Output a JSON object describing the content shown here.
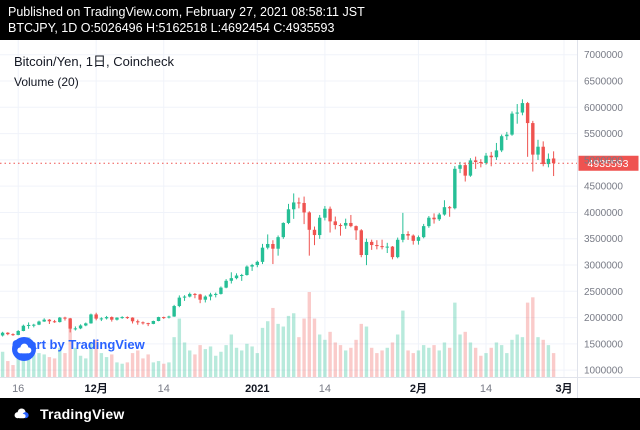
{
  "header": {
    "line1": "Published on TradingView.com, February 27, 2021 08:58:11 JST",
    "line2": "BTCJPY, 1D O:5026496 H:5162518 L:4692454 C:4935593"
  },
  "legend": {
    "title": "Bitcoin/Yen, 1日, Coincheck",
    "indicator": "Volume (20)"
  },
  "watermark": {
    "label": "Chart by TradingView",
    "logo": "tradingview-cloud-icon"
  },
  "footer": {
    "brand": "TradingView",
    "logo": "tradingview-cloud-icon"
  },
  "price_axis": {
    "labels": [
      "7000000",
      "6500000",
      "6000000",
      "5500000",
      "5000000",
      "4500000",
      "4000000",
      "3500000",
      "3000000",
      "2500000",
      "2000000",
      "1500000",
      "1000000"
    ],
    "last_price": "4935593",
    "last_price_bg": "#ef5350",
    "text_color": "#787b86"
  },
  "time_axis": {
    "ticks": [
      {
        "label": "16",
        "index": 3,
        "bold": false
      },
      {
        "label": "12月",
        "index": 18,
        "bold": true
      },
      {
        "label": "14",
        "index": 31,
        "bold": false
      },
      {
        "label": "2021",
        "index": 49,
        "bold": true
      },
      {
        "label": "14",
        "index": 62,
        "bold": false
      },
      {
        "label": "2月",
        "index": 80,
        "bold": true
      },
      {
        "label": "14",
        "index": 93,
        "bold": false
      },
      {
        "label": "3月",
        "index": 108,
        "bold": true
      }
    ]
  },
  "chart_data": {
    "type": "candlestick",
    "title": "Bitcoin/Yen, 1日, Coincheck",
    "symbol": "BTCJPY",
    "interval": "1D",
    "exchange": "Coincheck",
    "volume_indicator": "Volume (20)",
    "published_ohlc": {
      "open": 5026496,
      "high": 5162518,
      "low": 4692454,
      "close": 4935593
    },
    "last_price_value": 4935593,
    "y_range": [
      870000,
      7280000
    ],
    "x_domain": 111,
    "grid": true,
    "colors": {
      "up": "#26bf96",
      "down": "#ef5350",
      "vol_up": "rgba(38,191,150,0.33)",
      "vol_down": "rgba(239,83,80,0.30)",
      "grid": "#f0f3fa",
      "axis_text": "#787b86",
      "price_line": "#ef5350"
    },
    "candles": [
      [
        "11-13",
        1660000,
        1730000,
        1640000,
        1712000,
        95
      ],
      [
        "11-14",
        1712000,
        1722000,
        1665000,
        1685000,
        60
      ],
      [
        "11-15",
        1685000,
        1700000,
        1652000,
        1670000,
        45
      ],
      [
        "11-16",
        1670000,
        1762000,
        1664000,
        1745000,
        80
      ],
      [
        "11-17",
        1745000,
        1866000,
        1740000,
        1845000,
        120
      ],
      [
        "11-18",
        1845000,
        1908000,
        1788000,
        1860000,
        150
      ],
      [
        "11-19",
        1860000,
        1882000,
        1814000,
        1865000,
        85
      ],
      [
        "11-20",
        1865000,
        1942000,
        1856000,
        1925000,
        90
      ],
      [
        "11-21",
        1925000,
        1986000,
        1918000,
        1960000,
        85
      ],
      [
        "11-22",
        1960000,
        1972000,
        1878000,
        1930000,
        75
      ],
      [
        "11-23",
        1930000,
        1956000,
        1900000,
        1915000,
        70
      ],
      [
        "11-24",
        1915000,
        2012000,
        1906000,
        2000000,
        110
      ],
      [
        "11-25",
        2000000,
        2016000,
        1944000,
        1985000,
        90
      ],
      [
        "11-26",
        1985000,
        1994000,
        1718000,
        1790000,
        210
      ],
      [
        "11-27",
        1790000,
        1832000,
        1754000,
        1795000,
        110
      ],
      [
        "11-28",
        1795000,
        1872000,
        1780000,
        1850000,
        80
      ],
      [
        "11-29",
        1850000,
        1906000,
        1836000,
        1890000,
        70
      ],
      [
        "11-30",
        1890000,
        2076000,
        1884000,
        2060000,
        130
      ],
      [
        "12-01",
        2060000,
        2092000,
        1948000,
        1980000,
        140
      ],
      [
        "12-02",
        1980000,
        2006000,
        1934000,
        1985000,
        90
      ],
      [
        "12-03",
        1985000,
        2032000,
        1964000,
        2010000,
        75
      ],
      [
        "12-04",
        2010000,
        2022000,
        1924000,
        1960000,
        85
      ],
      [
        "12-05",
        1960000,
        2006000,
        1944000,
        2000000,
        55
      ],
      [
        "12-06",
        2000000,
        2026000,
        1976000,
        2010000,
        50
      ],
      [
        "12-07",
        2010000,
        2022000,
        1974000,
        2000000,
        55
      ],
      [
        "12-08",
        2000000,
        2006000,
        1888000,
        1930000,
        90
      ],
      [
        "12-09",
        1930000,
        1962000,
        1864000,
        1910000,
        100
      ],
      [
        "12-10",
        1910000,
        1926000,
        1868000,
        1895000,
        70
      ],
      [
        "12-11",
        1895000,
        1902000,
        1838000,
        1880000,
        85
      ],
      [
        "12-12",
        1880000,
        1942000,
        1874000,
        1935000,
        55
      ],
      [
        "12-13",
        1935000,
        2016000,
        1930000,
        2010000,
        60
      ],
      [
        "12-14",
        2010000,
        2018000,
        1974000,
        2005000,
        50
      ],
      [
        "12-15",
        2005000,
        2036000,
        1984000,
        2020000,
        55
      ],
      [
        "12-16",
        2020000,
        2242000,
        2014000,
        2220000,
        150
      ],
      [
        "12-17",
        2220000,
        2422000,
        2198000,
        2380000,
        220
      ],
      [
        "12-18",
        2380000,
        2426000,
        2318000,
        2400000,
        130
      ],
      [
        "12-19",
        2400000,
        2476000,
        2384000,
        2450000,
        100
      ],
      [
        "12-20",
        2450000,
        2466000,
        2368000,
        2440000,
        85
      ],
      [
        "12-21",
        2440000,
        2452000,
        2274000,
        2340000,
        120
      ],
      [
        "12-22",
        2340000,
        2422000,
        2288000,
        2400000,
        105
      ],
      [
        "12-23",
        2400000,
        2472000,
        2328000,
        2440000,
        115
      ],
      [
        "12-24",
        2440000,
        2476000,
        2384000,
        2450000,
        80
      ],
      [
        "12-25",
        2450000,
        2592000,
        2438000,
        2570000,
        95
      ],
      [
        "12-26",
        2570000,
        2732000,
        2558000,
        2700000,
        120
      ],
      [
        "12-27",
        2700000,
        2862000,
        2648000,
        2750000,
        160
      ],
      [
        "12-28",
        2750000,
        2842000,
        2728000,
        2800000,
        110
      ],
      [
        "12-29",
        2800000,
        2832000,
        2698000,
        2810000,
        100
      ],
      [
        "12-30",
        2810000,
        2992000,
        2798000,
        2970000,
        125
      ],
      [
        "12-31",
        2970000,
        3022000,
        2888000,
        3000000,
        115
      ],
      [
        "01-01",
        3000000,
        3082000,
        2958000,
        3060000,
        90
      ],
      [
        "01-02",
        3060000,
        3402000,
        3018000,
        3330000,
        185
      ],
      [
        "01-03",
        3330000,
        3582000,
        3298000,
        3400000,
        210
      ],
      [
        "01-04",
        3400000,
        3472000,
        3018000,
        3310000,
        260
      ],
      [
        "01-05",
        3310000,
        3562000,
        3178000,
        3530000,
        200
      ],
      [
        "01-06",
        3530000,
        3812000,
        3498000,
        3800000,
        190
      ],
      [
        "01-07",
        3800000,
        4162000,
        3778000,
        4060000,
        230
      ],
      [
        "01-08",
        4060000,
        4362000,
        3878000,
        4190000,
        240
      ],
      [
        "01-09",
        4190000,
        4282000,
        4078000,
        4180000,
        150
      ],
      [
        "01-10",
        4180000,
        4302000,
        3778000,
        4000000,
        220
      ],
      [
        "01-11",
        4000000,
        4022000,
        3178000,
        3670000,
        320
      ],
      [
        "01-12",
        3670000,
        3732000,
        3378000,
        3570000,
        220
      ],
      [
        "01-13",
        3570000,
        3952000,
        3498000,
        3900000,
        160
      ],
      [
        "01-14",
        3900000,
        4122000,
        3848000,
        4070000,
        140
      ],
      [
        "01-15",
        4070000,
        4112000,
        3618000,
        3830000,
        170
      ],
      [
        "01-16",
        3830000,
        3922000,
        3678000,
        3760000,
        130
      ],
      [
        "01-17",
        3760000,
        3792000,
        3558000,
        3750000,
        120
      ],
      [
        "01-18",
        3750000,
        3882000,
        3688000,
        3800000,
        100
      ],
      [
        "01-19",
        3800000,
        3952000,
        3718000,
        3740000,
        110
      ],
      [
        "01-20",
        3740000,
        3752000,
        3478000,
        3660000,
        140
      ],
      [
        "01-21",
        3660000,
        3682000,
        3148000,
        3190000,
        200
      ],
      [
        "01-22",
        3190000,
        3502000,
        2998000,
        3440000,
        190
      ],
      [
        "01-23",
        3440000,
        3482000,
        3288000,
        3380000,
        110
      ],
      [
        "01-24",
        3380000,
        3472000,
        3298000,
        3360000,
        90
      ],
      [
        "01-25",
        3360000,
        3482000,
        3298000,
        3340000,
        100
      ],
      [
        "01-26",
        3340000,
        3422000,
        3228000,
        3350000,
        110
      ],
      [
        "01-27",
        3350000,
        3362000,
        3108000,
        3150000,
        130
      ],
      [
        "01-28",
        3150000,
        3522000,
        3128000,
        3480000,
        160
      ],
      [
        "01-29",
        3480000,
        3992000,
        3432000,
        3590000,
        250
      ],
      [
        "01-30",
        3590000,
        3642000,
        3478000,
        3560000,
        100
      ],
      [
        "01-31",
        3560000,
        3582000,
        3388000,
        3460000,
        90
      ],
      [
        "02-01",
        3460000,
        3562000,
        3388000,
        3530000,
        100
      ],
      [
        "02-02",
        3530000,
        3782000,
        3508000,
        3740000,
        120
      ],
      [
        "02-03",
        3740000,
        3932000,
        3708000,
        3900000,
        110
      ],
      [
        "02-04",
        3900000,
        3982000,
        3788000,
        3870000,
        120
      ],
      [
        "02-05",
        3870000,
        3992000,
        3838000,
        3960000,
        100
      ],
      [
        "02-06",
        3960000,
        4232000,
        3938000,
        4100000,
        130
      ],
      [
        "02-07",
        4100000,
        4122000,
        3918000,
        4080000,
        110
      ],
      [
        "02-08",
        4080000,
        4882000,
        4058000,
        4830000,
        280
      ],
      [
        "02-09",
        4830000,
        4962000,
        4748000,
        4900000,
        160
      ],
      [
        "02-10",
        4900000,
        4952000,
        4588000,
        4700000,
        170
      ],
      [
        "02-11",
        4700000,
        5032000,
        4678000,
        4990000,
        130
      ],
      [
        "02-12",
        4990000,
        5062000,
        4828000,
        4960000,
        110
      ],
      [
        "02-13",
        4960000,
        5012000,
        4858000,
        4940000,
        80
      ],
      [
        "02-14",
        4940000,
        5132000,
        4908000,
        5080000,
        90
      ],
      [
        "02-15",
        5080000,
        5152000,
        4878000,
        5050000,
        110
      ],
      [
        "02-16",
        5050000,
        5322000,
        4998000,
        5180000,
        130
      ],
      [
        "02-17",
        5180000,
        5482000,
        5148000,
        5450000,
        120
      ],
      [
        "02-18",
        5450000,
        5532000,
        5378000,
        5480000,
        90
      ],
      [
        "02-19",
        5480000,
        5922000,
        5458000,
        5880000,
        140
      ],
      [
        "02-20",
        5880000,
        6062000,
        5688000,
        5900000,
        160
      ],
      [
        "02-21",
        5900000,
        6152000,
        5848000,
        6080000,
        150
      ],
      [
        "02-22",
        6080000,
        6102000,
        5058000,
        5700000,
        280
      ],
      [
        "02-23",
        5700000,
        5742000,
        4778000,
        5100000,
        300
      ],
      [
        "02-24",
        5100000,
        5382000,
        4998000,
        5250000,
        150
      ],
      [
        "02-25",
        5250000,
        5352000,
        4878000,
        4920000,
        140
      ],
      [
        "02-26",
        4920000,
        5122000,
        4858000,
        5020000,
        120
      ],
      [
        "02-27",
        5026496,
        5162518,
        4692454,
        4935593,
        90
      ]
    ]
  }
}
